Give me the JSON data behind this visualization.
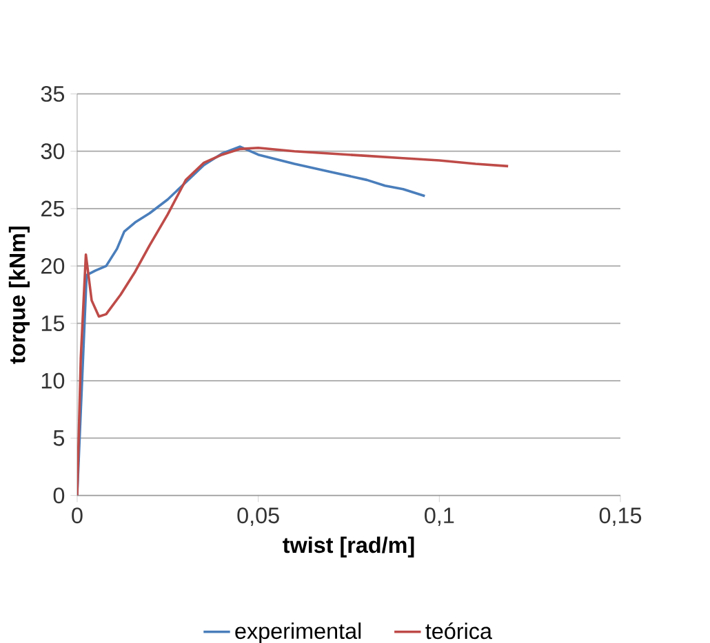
{
  "chart_data": {
    "type": "line",
    "xlabel": "twist [rad/m]",
    "ylabel": "torque [kNm]",
    "xlim": [
      0,
      0.15
    ],
    "ylim": [
      0,
      35
    ],
    "xticks": [
      0,
      {
        "value": 0.05,
        "label": "0,05"
      },
      {
        "value": 0.1,
        "label": "0,1"
      },
      {
        "value": 0.15,
        "label": "0,15"
      }
    ],
    "yticks": [
      0,
      5,
      10,
      15,
      20,
      25,
      30,
      35
    ],
    "grid": "y",
    "legend": "bottom",
    "marker": "none",
    "line_style": "solid",
    "series": [
      {
        "name": "experimental",
        "color": "#4a7ebb",
        "x": [
          0,
          0.0026,
          0.005,
          0.008,
          0.011,
          0.013,
          0.016,
          0.02,
          0.025,
          0.03,
          0.035,
          0.04,
          0.045,
          0.05,
          0.055,
          0.06,
          0.07,
          0.08,
          0.085,
          0.09,
          0.096
        ],
        "values": [
          0,
          19.2,
          19.6,
          20,
          21.5,
          23,
          23.8,
          24.6,
          25.8,
          27.3,
          28.8,
          29.8,
          30.4,
          29.7,
          29.3,
          28.9,
          28.2,
          27.5,
          27.0,
          26.7,
          26.1
        ]
      },
      {
        "name": "teórica",
        "color": "#be4b48",
        "x": [
          0,
          0.001,
          0.0024,
          0.004,
          0.006,
          0.008,
          0.012,
          0.016,
          0.02,
          0.025,
          0.03,
          0.035,
          0.04,
          0.045,
          0.05,
          0.06,
          0.07,
          0.08,
          0.09,
          0.1,
          0.11,
          0.119
        ],
        "values": [
          0,
          12,
          21,
          17,
          15.6,
          15.8,
          17.5,
          19.5,
          21.8,
          24.5,
          27.5,
          29,
          29.7,
          30.2,
          30.3,
          30.0,
          29.8,
          29.6,
          29.4,
          29.2,
          28.9,
          28.7
        ]
      }
    ]
  }
}
